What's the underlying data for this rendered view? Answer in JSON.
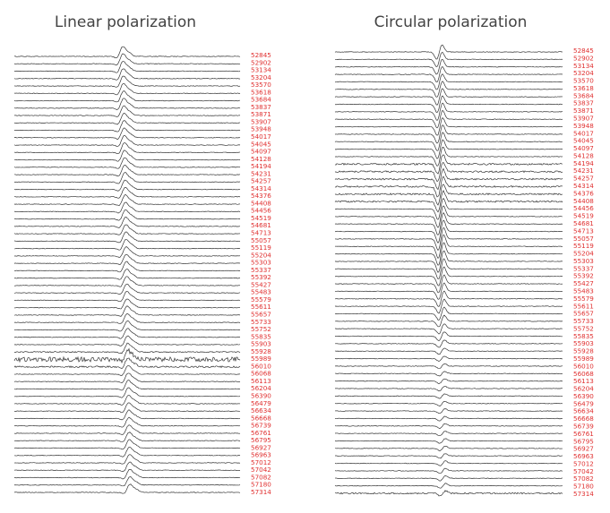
{
  "chart_data": [
    {
      "type": "line",
      "title": "Linear polarization",
      "trace_color": "#333333",
      "label_color": "#e03030",
      "grid": false,
      "axes": "hidden",
      "epochs": [
        "52845",
        "52902",
        "53134",
        "53204",
        "53570",
        "53618",
        "53684",
        "53837",
        "53871",
        "53907",
        "53948",
        "54017",
        "54045",
        "54097",
        "54128",
        "54194",
        "54231",
        "54257",
        "54314",
        "54376",
        "54408",
        "54456",
        "54519",
        "54681",
        "54713",
        "55057",
        "55119",
        "55204",
        "55303",
        "55337",
        "55392",
        "55427",
        "55483",
        "55579",
        "55611",
        "55657",
        "55733",
        "55752",
        "55835",
        "55903",
        "55928",
        "55989",
        "56010",
        "56068",
        "56113",
        "56204",
        "56390",
        "56479",
        "56634",
        "56668",
        "56739",
        "56761",
        "56795",
        "56927",
        "56963",
        "57012",
        "57042",
        "57082",
        "57180",
        "57314"
      ]
    },
    {
      "type": "line",
      "title": "Circular polarization",
      "trace_color": "#333333",
      "label_color": "#e03030",
      "grid": false,
      "axes": "hidden",
      "epochs": [
        "52845",
        "52902",
        "53134",
        "53204",
        "53570",
        "53618",
        "53684",
        "53837",
        "53871",
        "53907",
        "53948",
        "54017",
        "54045",
        "54097",
        "54128",
        "54194",
        "54231",
        "54257",
        "54314",
        "54376",
        "54408",
        "54456",
        "54519",
        "54681",
        "54713",
        "55057",
        "55119",
        "55204",
        "55303",
        "55337",
        "55392",
        "55427",
        "55483",
        "55579",
        "55611",
        "55657",
        "55733",
        "55752",
        "55835",
        "55903",
        "55928",
        "55989",
        "56010",
        "56068",
        "56113",
        "56204",
        "56390",
        "56479",
        "56634",
        "56668",
        "56739",
        "56761",
        "56795",
        "56927",
        "56963",
        "57012",
        "57042",
        "57082",
        "57180",
        "57314"
      ]
    }
  ]
}
